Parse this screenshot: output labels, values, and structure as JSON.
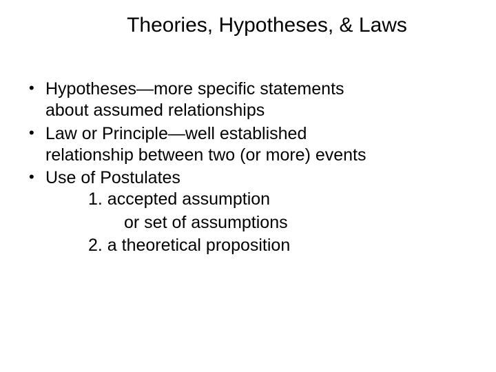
{
  "slide": {
    "title": "Theories, Hypotheses, & Laws",
    "bullets": [
      {
        "line1": "Hypotheses—more specific statements",
        "line2": "about assumed relationships"
      },
      {
        "line1": "Law or Principle—well   established",
        "line2": "relationship between two (or more) events"
      },
      {
        "line1": "Use of Postulates"
      }
    ],
    "sub_items": [
      {
        "text": "1. accepted assumption",
        "continuation": "or set of assumptions"
      },
      {
        "text": "2. a theoretical proposition"
      }
    ]
  },
  "colors": {
    "background": "#ffffff",
    "text": "#000000"
  },
  "typography": {
    "title_fontsize": 30,
    "body_fontsize": 25,
    "font_family": "Verdana"
  }
}
